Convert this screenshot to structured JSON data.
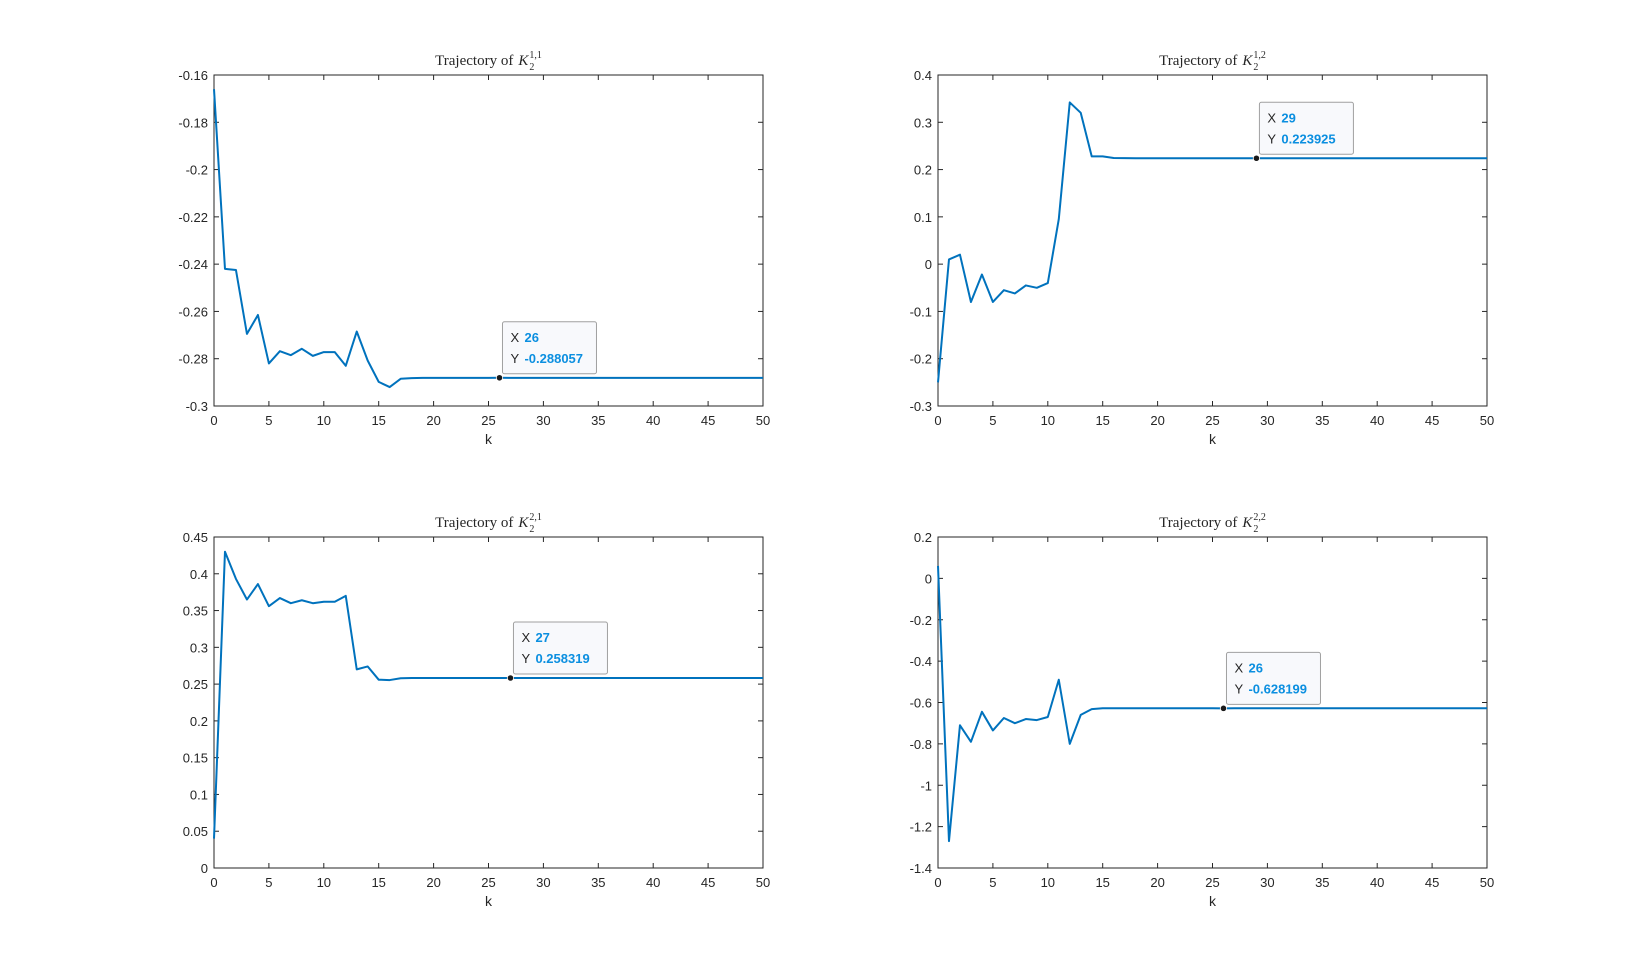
{
  "chart_data": [
    {
      "type": "line",
      "title": {
        "prefix": "Trajectory of",
        "var": "K",
        "sub": "2",
        "sup": "1,1"
      },
      "xlabel": "k",
      "ylabel": "",
      "xlim": [
        0,
        50
      ],
      "ylim": [
        -0.3,
        -0.16
      ],
      "xticks": [
        "0",
        "5",
        "10",
        "15",
        "20",
        "25",
        "30",
        "35",
        "40",
        "45",
        "50"
      ],
      "yticks": [
        "-0.3",
        "-0.28",
        "-0.26",
        "-0.24",
        "-0.22",
        "-0.2",
        "-0.18",
        "-0.16"
      ],
      "ytick_values": [
        -0.3,
        -0.28,
        -0.26,
        -0.24,
        -0.22,
        -0.2,
        -0.18,
        -0.16
      ],
      "series": [
        {
          "color": "#0072BD",
          "x": [
            0,
            1,
            2,
            3,
            4,
            5,
            6,
            7,
            8,
            9,
            10,
            11,
            12,
            13,
            14,
            15,
            16,
            17,
            18,
            19,
            20,
            21,
            22,
            23,
            24,
            25,
            26,
            27,
            28,
            29,
            30,
            31,
            32,
            33,
            34,
            35,
            36,
            37,
            38,
            39,
            40,
            41,
            42,
            43,
            44,
            45,
            46,
            47,
            48,
            49,
            50
          ],
          "y": [
            -0.166,
            -0.242,
            -0.2425,
            -0.2695,
            -0.2615,
            -0.282,
            -0.2768,
            -0.2785,
            -0.2758,
            -0.2788,
            -0.2772,
            -0.2772,
            -0.283,
            -0.2685,
            -0.2808,
            -0.2898,
            -0.292,
            -0.2885,
            -0.2882,
            -0.2881,
            -0.2881,
            -0.2881,
            -0.2881,
            -0.2881,
            -0.2881,
            -0.2881,
            -0.288057,
            -0.2881,
            -0.2881,
            -0.2881,
            -0.2881,
            -0.2881,
            -0.2881,
            -0.2881,
            -0.2881,
            -0.2881,
            -0.2881,
            -0.2881,
            -0.2881,
            -0.2881,
            -0.2881,
            -0.2881,
            -0.2881,
            -0.2881,
            -0.2881,
            -0.2881,
            -0.2881,
            -0.2881,
            -0.2881,
            -0.2881,
            -0.2881
          ]
        }
      ],
      "datatip": {
        "x": 26,
        "y": -0.288057,
        "x_label": "X",
        "y_label": "Y",
        "x_text": "26",
        "y_text": "-0.288057"
      }
    },
    {
      "type": "line",
      "title": {
        "prefix": "Trajectory of",
        "var": "K",
        "sub": "2",
        "sup": "1,2"
      },
      "xlabel": "k",
      "ylabel": "",
      "xlim": [
        0,
        50
      ],
      "ylim": [
        -0.3,
        0.4
      ],
      "xticks": [
        "0",
        "5",
        "10",
        "15",
        "20",
        "25",
        "30",
        "35",
        "40",
        "45",
        "50"
      ],
      "yticks": [
        "-0.3",
        "-0.2",
        "-0.1",
        "0",
        "0.1",
        "0.2",
        "0.3",
        "0.4"
      ],
      "ytick_values": [
        -0.3,
        -0.2,
        -0.1,
        0,
        0.1,
        0.2,
        0.3,
        0.4
      ],
      "series": [
        {
          "color": "#0072BD",
          "x": [
            0,
            1,
            2,
            3,
            4,
            5,
            6,
            7,
            8,
            9,
            10,
            11,
            12,
            13,
            14,
            15,
            16,
            17,
            18,
            19,
            20,
            21,
            22,
            23,
            24,
            25,
            26,
            27,
            28,
            29,
            30,
            31,
            32,
            33,
            34,
            35,
            36,
            37,
            38,
            39,
            40,
            41,
            42,
            43,
            44,
            45,
            46,
            47,
            48,
            49,
            50
          ],
          "y": [
            -0.25,
            0.01,
            0.02,
            -0.08,
            -0.022,
            -0.08,
            -0.055,
            -0.062,
            -0.045,
            -0.05,
            -0.04,
            0.095,
            0.342,
            0.32,
            0.228,
            0.228,
            0.2245,
            0.2242,
            0.224,
            0.224,
            0.224,
            0.224,
            0.224,
            0.224,
            0.224,
            0.224,
            0.224,
            0.224,
            0.224,
            0.223925,
            0.224,
            0.224,
            0.224,
            0.224,
            0.224,
            0.224,
            0.224,
            0.224,
            0.224,
            0.224,
            0.224,
            0.224,
            0.224,
            0.224,
            0.224,
            0.224,
            0.224,
            0.224,
            0.224,
            0.224,
            0.224
          ]
        }
      ],
      "datatip": {
        "x": 29,
        "y": 0.223925,
        "x_label": "X",
        "y_label": "Y",
        "x_text": "29",
        "y_text": "0.223925"
      }
    },
    {
      "type": "line",
      "title": {
        "prefix": "Trajectory of",
        "var": "K",
        "sub": "2",
        "sup": "2,1"
      },
      "xlabel": "k",
      "ylabel": "",
      "xlim": [
        0,
        50
      ],
      "ylim": [
        0,
        0.45
      ],
      "xticks": [
        "0",
        "5",
        "10",
        "15",
        "20",
        "25",
        "30",
        "35",
        "40",
        "45",
        "50"
      ],
      "yticks": [
        "0",
        "0.05",
        "0.1",
        "0.15",
        "0.2",
        "0.25",
        "0.3",
        "0.35",
        "0.4",
        "0.45"
      ],
      "ytick_values": [
        0,
        0.05,
        0.1,
        0.15,
        0.2,
        0.25,
        0.3,
        0.35,
        0.4,
        0.45
      ],
      "series": [
        {
          "color": "#0072BD",
          "x": [
            0,
            1,
            2,
            3,
            4,
            5,
            6,
            7,
            8,
            9,
            10,
            11,
            12,
            13,
            14,
            15,
            16,
            17,
            18,
            19,
            20,
            21,
            22,
            23,
            24,
            25,
            26,
            27,
            28,
            29,
            30,
            31,
            32,
            33,
            34,
            35,
            36,
            37,
            38,
            39,
            40,
            41,
            42,
            43,
            44,
            45,
            46,
            47,
            48,
            49,
            50
          ],
          "y": [
            0.04,
            0.43,
            0.393,
            0.365,
            0.386,
            0.356,
            0.367,
            0.36,
            0.364,
            0.36,
            0.362,
            0.362,
            0.37,
            0.27,
            0.274,
            0.256,
            0.2555,
            0.258,
            0.2583,
            0.2583,
            0.2583,
            0.2583,
            0.2583,
            0.2583,
            0.2583,
            0.2583,
            0.2583,
            0.258319,
            0.2583,
            0.2583,
            0.2583,
            0.2583,
            0.2583,
            0.2583,
            0.2583,
            0.2583,
            0.2583,
            0.2583,
            0.2583,
            0.2583,
            0.2583,
            0.2583,
            0.2583,
            0.2583,
            0.2583,
            0.2583,
            0.2583,
            0.2583,
            0.2583,
            0.2583,
            0.2583
          ]
        }
      ],
      "datatip": {
        "x": 27,
        "y": 0.258319,
        "x_label": "X",
        "y_label": "Y",
        "x_text": "27",
        "y_text": "0.258319"
      }
    },
    {
      "type": "line",
      "title": {
        "prefix": "Trajectory of",
        "var": "K",
        "sub": "2",
        "sup": "2,2"
      },
      "xlabel": "k",
      "ylabel": "",
      "xlim": [
        0,
        50
      ],
      "ylim": [
        -1.4,
        0.2
      ],
      "xticks": [
        "0",
        "5",
        "10",
        "15",
        "20",
        "25",
        "30",
        "35",
        "40",
        "45",
        "50"
      ],
      "yticks": [
        "-1.4",
        "-1.2",
        "-1",
        "-0.8",
        "-0.6",
        "-0.4",
        "-0.2",
        "0",
        "0.2"
      ],
      "ytick_values": [
        -1.4,
        -1.2,
        -1,
        -0.8,
        -0.6,
        -0.4,
        -0.2,
        0,
        0.2
      ],
      "series": [
        {
          "color": "#0072BD",
          "x": [
            0,
            1,
            2,
            3,
            4,
            5,
            6,
            7,
            8,
            9,
            10,
            11,
            12,
            13,
            14,
            15,
            16,
            17,
            18,
            19,
            20,
            21,
            22,
            23,
            24,
            25,
            26,
            27,
            28,
            29,
            30,
            31,
            32,
            33,
            34,
            35,
            36,
            37,
            38,
            39,
            40,
            41,
            42,
            43,
            44,
            45,
            46,
            47,
            48,
            49,
            50
          ],
          "y": [
            0.06,
            -1.27,
            -0.71,
            -0.79,
            -0.645,
            -0.735,
            -0.675,
            -0.7,
            -0.68,
            -0.685,
            -0.67,
            -0.49,
            -0.8,
            -0.66,
            -0.632,
            -0.628,
            -0.628,
            -0.628,
            -0.628,
            -0.628,
            -0.628,
            -0.628,
            -0.628,
            -0.628,
            -0.628,
            -0.628,
            -0.628199,
            -0.628,
            -0.628,
            -0.628,
            -0.628,
            -0.628,
            -0.628,
            -0.628,
            -0.628,
            -0.628,
            -0.628,
            -0.628,
            -0.628,
            -0.628,
            -0.628,
            -0.628,
            -0.628,
            -0.628,
            -0.628,
            -0.628,
            -0.628,
            -0.628,
            -0.628,
            -0.628,
            -0.628
          ]
        }
      ],
      "datatip": {
        "x": 26,
        "y": -0.628199,
        "x_label": "X",
        "y_label": "Y",
        "x_text": "26",
        "y_text": "-0.628199"
      }
    }
  ]
}
